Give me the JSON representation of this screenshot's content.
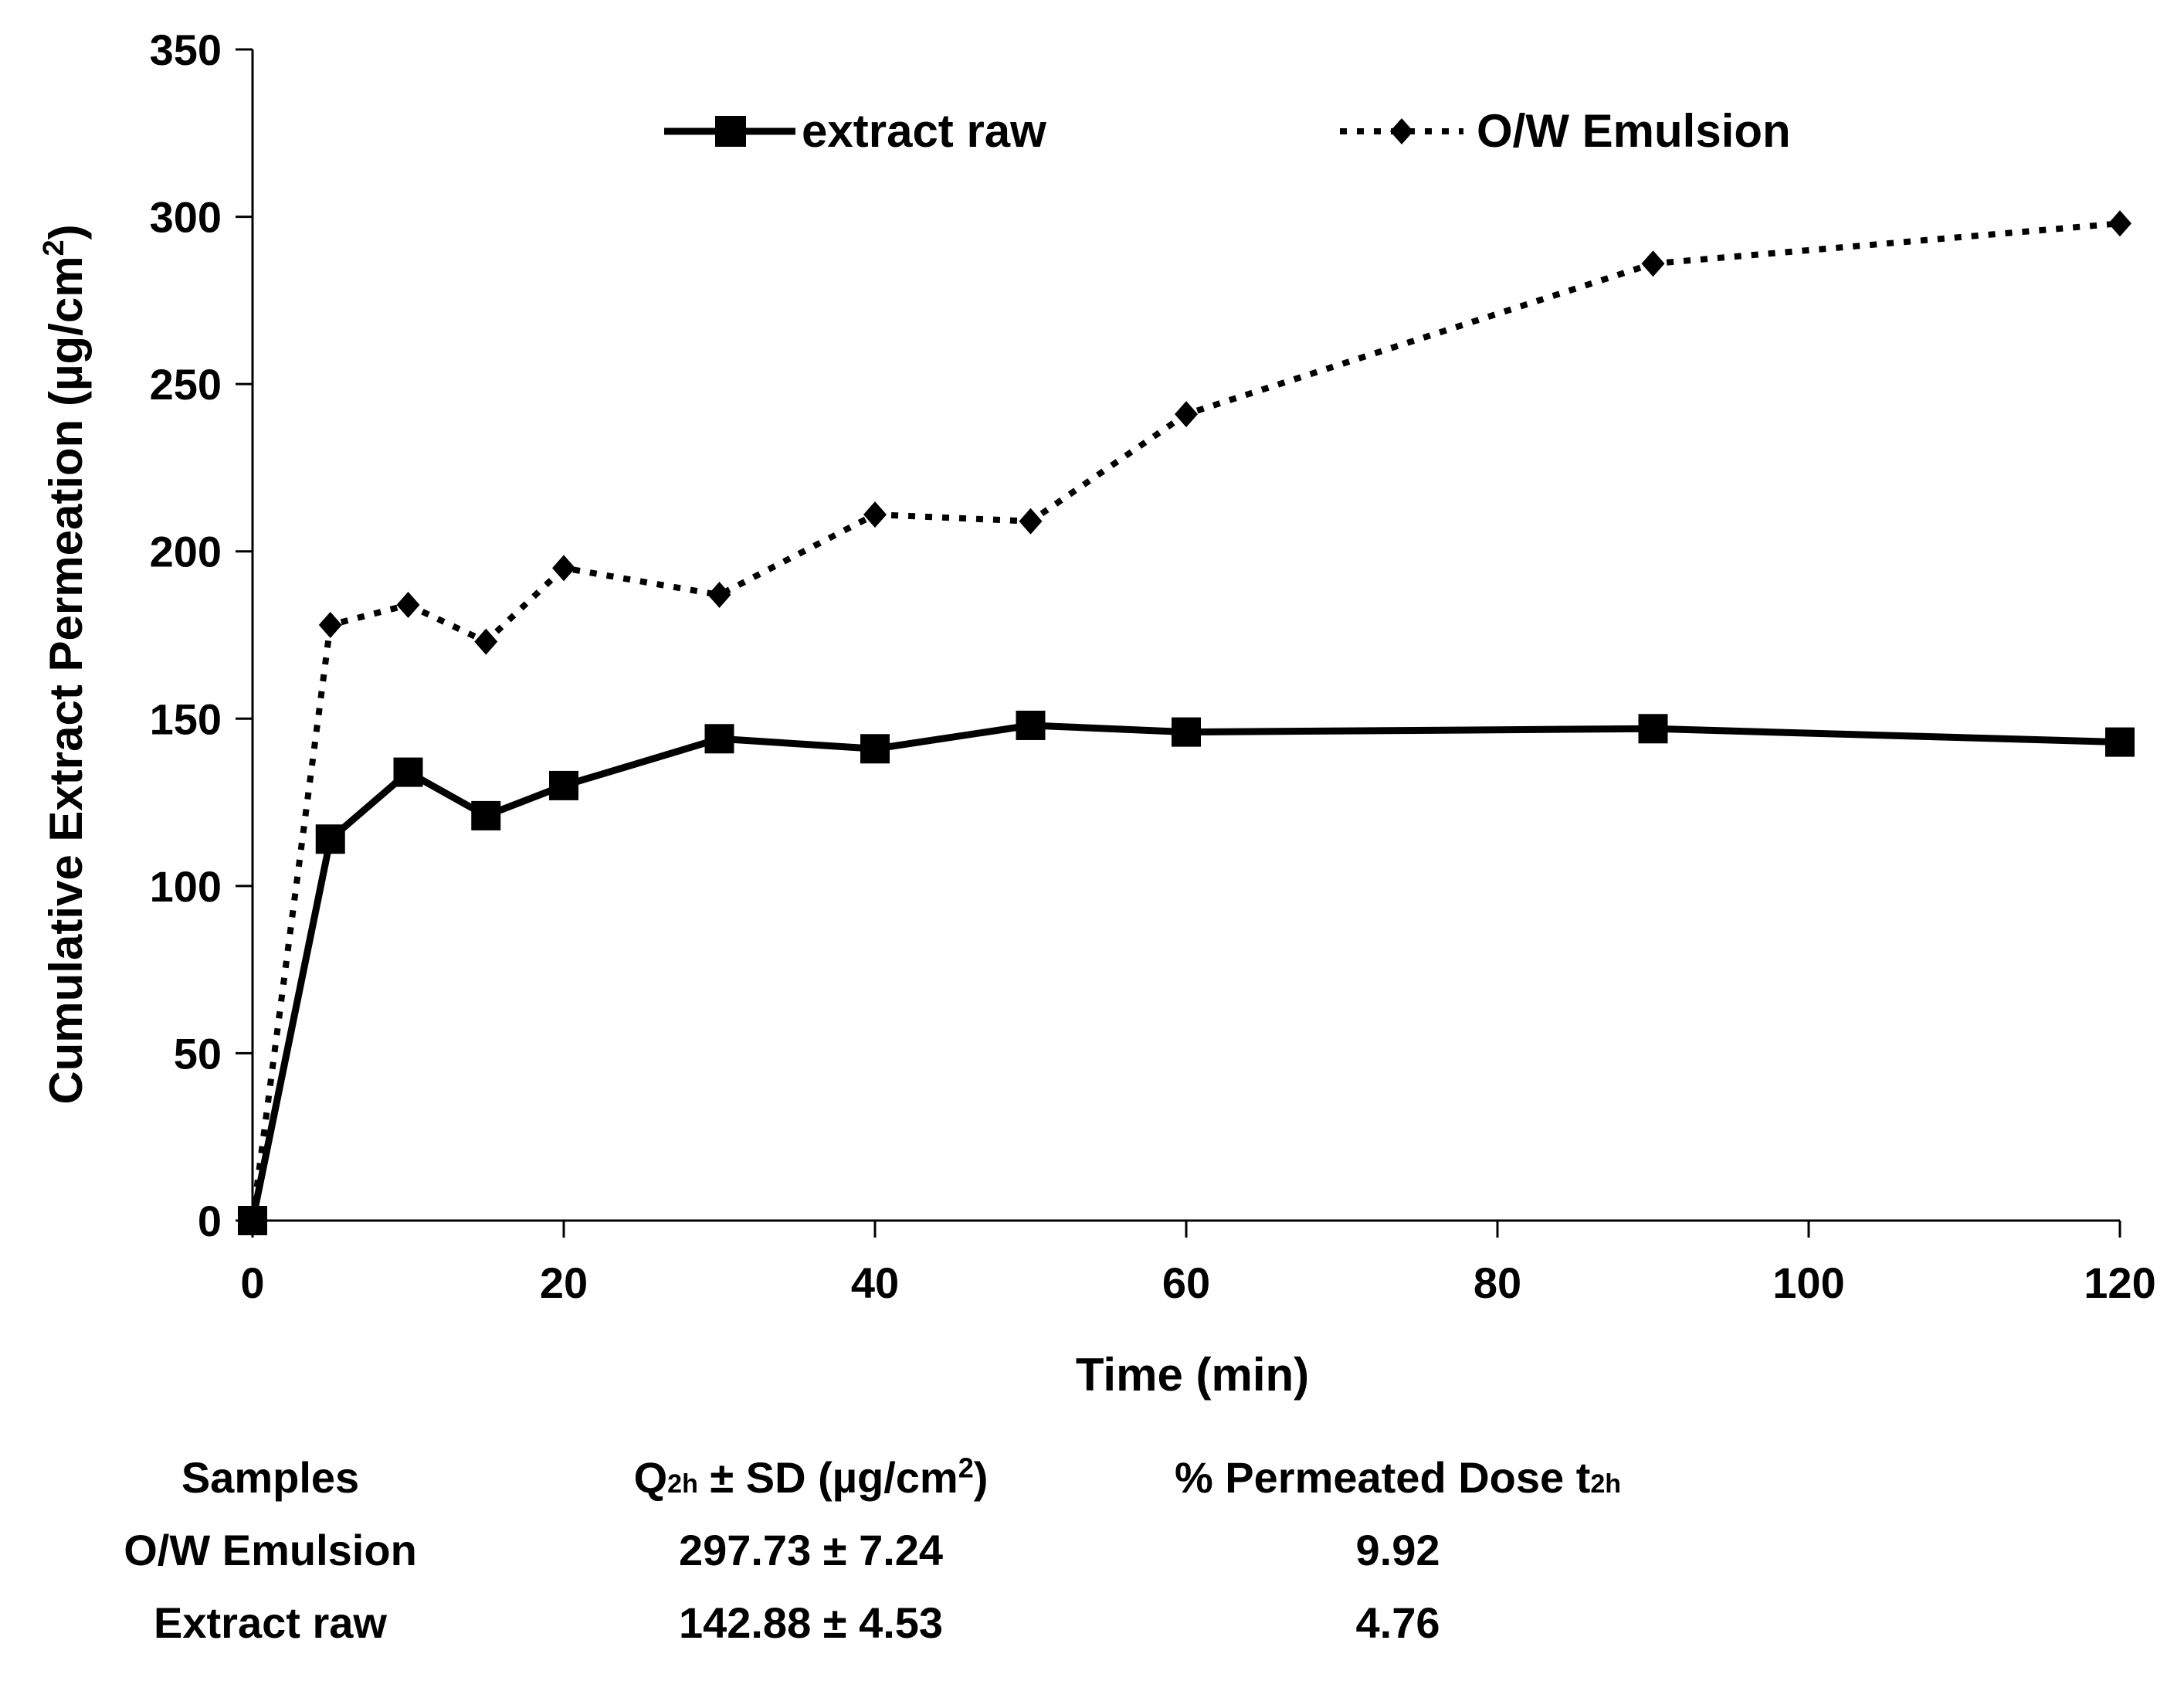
{
  "chart_data": {
    "type": "line",
    "xlabel": "Time (min)",
    "ylabel": "Cumulative Extract Permeation  (µg/cm",
    "ylabel_sup": "2",
    "ylabel_tail": ")",
    "xlim": [
      0,
      120
    ],
    "ylim": [
      0,
      350
    ],
    "xticks": [
      0,
      20,
      40,
      60,
      80,
      100,
      120
    ],
    "yticks": [
      0,
      50,
      100,
      150,
      200,
      250,
      300,
      350
    ],
    "grid": false,
    "legend_position": "top",
    "series": [
      {
        "name": "extract raw",
        "style": "solid",
        "marker": "square",
        "color": "#000000",
        "x": [
          0,
          5,
          10,
          15,
          20,
          30,
          40,
          50,
          60,
          90,
          120
        ],
        "y": [
          0,
          114,
          134,
          121,
          130,
          144,
          141,
          148,
          146,
          147,
          143
        ]
      },
      {
        "name": "O/W Emulsion",
        "style": "dotted",
        "marker": "diamond",
        "color": "#000000",
        "x": [
          0,
          5,
          10,
          15,
          20,
          30,
          40,
          50,
          60,
          90,
          120
        ],
        "y": [
          0,
          178,
          184,
          173,
          195,
          187,
          211,
          209,
          241,
          286,
          298
        ]
      }
    ]
  },
  "table": {
    "headers": {
      "samples": "Samples",
      "q_prefix": "Q",
      "q_sub": "2h",
      "q_rest": " ± SD (µg/cm",
      "q_sup": "2",
      "q_close": ")",
      "dose_prefix": "% Permeated Dose t",
      "dose_sub": "2h"
    },
    "rows": [
      {
        "sample": "O/W Emulsion",
        "q": "297.73 ± 7.24",
        "dose": "9.92"
      },
      {
        "sample": "Extract raw",
        "q": "142.88 ± 4.53",
        "dose": "4.76"
      }
    ]
  }
}
